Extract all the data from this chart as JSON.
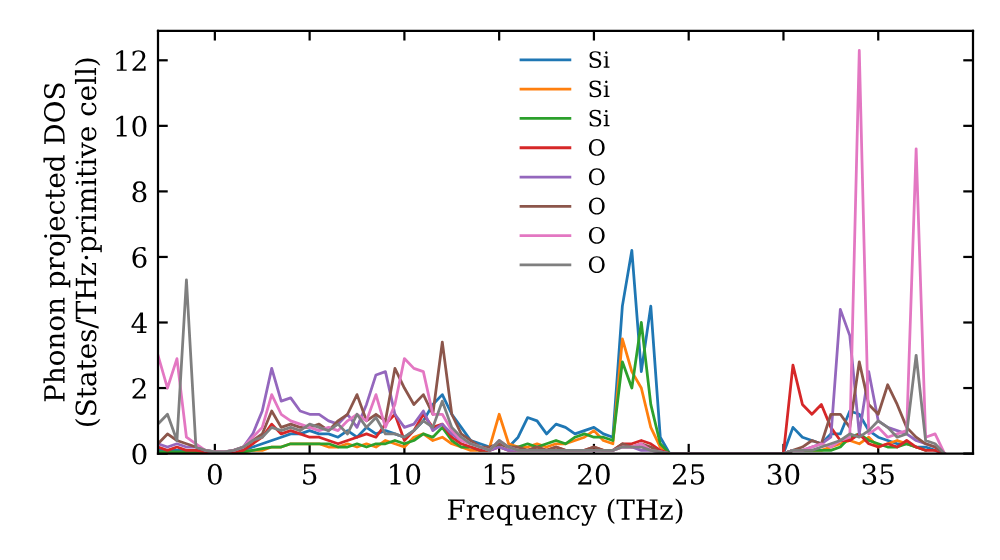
{
  "chart_data": {
    "type": "line",
    "xlabel": "Frequency (THz)",
    "ylabel": "Phonon projected DOS\n(States/THz·primitive cell)",
    "x": [
      -3,
      -2.5,
      -2,
      -1.5,
      -1,
      -0.5,
      0,
      0.5,
      1,
      1.5,
      2,
      2.5,
      3,
      3.5,
      4,
      4.5,
      5,
      5.5,
      6,
      6.5,
      7,
      7.5,
      8,
      8.5,
      9,
      9.5,
      10,
      10.5,
      11,
      11.5,
      12,
      12.5,
      13,
      13.5,
      14,
      14.5,
      15,
      15.5,
      16,
      16.5,
      17,
      17.5,
      18,
      18.5,
      19,
      19.5,
      20,
      20.5,
      21,
      21.5,
      22,
      22.5,
      23,
      23.5,
      24,
      24.5,
      25,
      28,
      30,
      30.5,
      31,
      31.5,
      32,
      32.5,
      33,
      33.5,
      34,
      34.5,
      35,
      35.5,
      36,
      36.5,
      37,
      37.5,
      38,
      38.5
    ],
    "series": [
      {
        "name": "Si",
        "color": "#1f77b4",
        "values": [
          0.1,
          0.1,
          0.1,
          0.1,
          0.1,
          0.05,
          0,
          0,
          0.05,
          0.1,
          0.2,
          0.3,
          0.4,
          0.5,
          0.6,
          0.6,
          0.7,
          0.6,
          0.6,
          0.5,
          0.7,
          0.5,
          0.8,
          0.6,
          0.7,
          0.6,
          0.5,
          0.7,
          1.0,
          1.5,
          1.8,
          1.2,
          0.8,
          0.4,
          0.3,
          0.2,
          0.3,
          0.2,
          0.5,
          1.1,
          1.0,
          0.6,
          0.9,
          0.8,
          0.6,
          0.7,
          0.8,
          0.6,
          0.5,
          4.5,
          6.2,
          2.5,
          4.5,
          0.5,
          0,
          0,
          0,
          0,
          0,
          0.8,
          0.5,
          0.4,
          0.3,
          0.6,
          0.6,
          1.3,
          1.2,
          0.7,
          0.5,
          0.4,
          0.3,
          0.3,
          0.2,
          0.2,
          0.1,
          0
        ]
      },
      {
        "name": "Si",
        "color": "#ff7f0e",
        "values": [
          null,
          null,
          null,
          null,
          null,
          null,
          null,
          null,
          null,
          0.05,
          0.1,
          0.1,
          0.2,
          0.2,
          0.3,
          0.3,
          0.3,
          0.3,
          0.2,
          0.2,
          0.3,
          0.2,
          0.3,
          0.2,
          0.4,
          0.3,
          0.2,
          0.5,
          0.6,
          0.4,
          0.5,
          0.3,
          0.2,
          0.1,
          0.1,
          0.2,
          1.2,
          0.3,
          0.2,
          0.2,
          0.3,
          0.2,
          0.3,
          0.3,
          0.4,
          0.5,
          0.7,
          0.4,
          0.3,
          3.5,
          2.5,
          2.0,
          0.8,
          0.2,
          0,
          0,
          0,
          0,
          0,
          0.1,
          0.1,
          0.1,
          0.1,
          0.2,
          0.3,
          0.4,
          0.3,
          0.5,
          0.2,
          0.3,
          0.4,
          0.3,
          0.2,
          null,
          null,
          null
        ]
      },
      {
        "name": "Si",
        "color": "#2ca02c",
        "values": [
          0.05,
          0.05,
          0.05,
          0.05,
          0.05,
          0.02,
          0,
          0,
          0,
          0.05,
          0.1,
          0.15,
          0.2,
          0.2,
          0.3,
          0.3,
          0.3,
          0.3,
          0.3,
          0.2,
          0.2,
          0.3,
          0.2,
          0.3,
          0.3,
          0.4,
          0.3,
          0.4,
          0.6,
          0.5,
          0.8,
          0.4,
          0.2,
          0.2,
          0.1,
          0.1,
          0.3,
          0.2,
          0.2,
          0.3,
          0.2,
          0.3,
          0.4,
          0.3,
          0.5,
          0.6,
          0.5,
          0.5,
          0.4,
          2.8,
          2.0,
          4.0,
          1.5,
          0.3,
          0,
          0,
          0,
          0,
          0,
          0.1,
          0.1,
          0.1,
          0.1,
          0.1,
          0.2,
          0.5,
          0.6,
          0.4,
          0.3,
          0.2,
          0.2,
          0.3,
          0.2,
          0.1,
          null,
          null
        ]
      },
      {
        "name": "O",
        "color": "#d62728",
        "values": [
          0.2,
          0.1,
          0.2,
          0.1,
          0.1,
          0.05,
          0,
          0,
          0.05,
          0.1,
          0.3,
          0.5,
          0.9,
          0.6,
          0.7,
          0.6,
          0.5,
          0.5,
          0.4,
          0.3,
          0.4,
          0.5,
          0.6,
          0.5,
          0.9,
          1.2,
          0.4,
          0.7,
          1.2,
          0.8,
          0.9,
          0.5,
          0.3,
          0.2,
          0.1,
          0.1,
          0.2,
          0.1,
          0.1,
          0.1,
          0.2,
          0.1,
          0.2,
          0.1,
          0.1,
          0.1,
          0.2,
          0.1,
          0.1,
          0.3,
          0.3,
          0.4,
          0.3,
          0.1,
          0,
          0,
          0,
          0,
          0,
          2.7,
          1.5,
          1.2,
          1.5,
          0.8,
          0.4,
          0.4,
          0.6,
          0.3,
          0.2,
          0.3,
          0.2,
          0.4,
          0.2,
          0.1,
          0.1,
          0
        ]
      },
      {
        "name": "O",
        "color": "#9467bd",
        "values": [
          0.3,
          0.2,
          0.3,
          0.2,
          0.2,
          0.1,
          0.05,
          0.05,
          0.1,
          0.2,
          0.6,
          1.3,
          2.6,
          1.6,
          1.7,
          1.3,
          1.2,
          1.2,
          1.0,
          0.9,
          1.2,
          0.8,
          1.5,
          2.4,
          2.5,
          1.2,
          0.8,
          0.9,
          1.3,
          0.7,
          0.9,
          0.6,
          0.4,
          0.3,
          0.2,
          0.1,
          0.2,
          0.1,
          0.1,
          0.1,
          0.1,
          0.1,
          0.1,
          0.1,
          0.1,
          0.1,
          0.1,
          0.1,
          0.1,
          0.2,
          0.2,
          0.1,
          0.1,
          0.05,
          0,
          0,
          0,
          0,
          0,
          0.1,
          0.1,
          0.2,
          0.3,
          0.5,
          4.4,
          3.6,
          0.6,
          2.5,
          1.0,
          0.8,
          0.7,
          0.6,
          0.4,
          0.3,
          0.2,
          0
        ]
      },
      {
        "name": "O",
        "color": "#8c564b",
        "values": [
          0.3,
          0.6,
          0.4,
          0.3,
          0.2,
          0.1,
          0.05,
          0.05,
          0.1,
          0.2,
          0.4,
          0.6,
          1.3,
          0.8,
          0.9,
          0.8,
          0.8,
          0.9,
          0.7,
          1.0,
          1.2,
          1.8,
          1.0,
          1.2,
          1.0,
          2.6,
          2.0,
          1.5,
          1.8,
          1.2,
          3.4,
          1.2,
          0.6,
          0.4,
          0.2,
          0.2,
          0.3,
          0.2,
          0.2,
          0.1,
          0.2,
          0.1,
          0.2,
          0.1,
          0.1,
          0.1,
          0.2,
          0.1,
          0.1,
          0.3,
          0.2,
          0.3,
          0.2,
          0.05,
          0,
          0,
          0,
          0,
          0,
          0.1,
          0.2,
          0.4,
          0.3,
          1.2,
          1.2,
          0.8,
          2.8,
          1.5,
          1.2,
          2.1,
          1.5,
          0.8,
          0.5,
          0.3,
          0.2,
          0
        ]
      },
      {
        "name": "O",
        "color": "#e377c2",
        "values": [
          3.0,
          2.0,
          2.9,
          0.5,
          0.3,
          0.1,
          0.05,
          0.05,
          0.1,
          0.2,
          0.5,
          0.8,
          1.8,
          1.2,
          1.0,
          0.9,
          0.8,
          0.7,
          0.8,
          0.7,
          1.0,
          1.2,
          1.0,
          1.8,
          0.8,
          1.5,
          2.9,
          2.6,
          2.5,
          1.2,
          1.2,
          0.7,
          0.4,
          0.3,
          0.2,
          0.1,
          0.4,
          0.2,
          0.1,
          0.1,
          0.1,
          0.1,
          0.1,
          0.1,
          0.1,
          0.1,
          0.1,
          0.1,
          0.1,
          0.2,
          0.2,
          0.3,
          0.1,
          0.05,
          0,
          0,
          0,
          0,
          0,
          0.1,
          0.1,
          0.2,
          0.3,
          0.2,
          0.4,
          0.5,
          12.3,
          0.6,
          0.8,
          0.5,
          0.6,
          0.7,
          9.3,
          0.5,
          0.6,
          0
        ]
      },
      {
        "name": "O",
        "color": "#7f7f7f",
        "values": [
          0.9,
          1.2,
          0.4,
          5.3,
          0.2,
          0.1,
          0.05,
          0.05,
          0.1,
          0.2,
          0.4,
          0.5,
          0.8,
          0.7,
          0.8,
          0.7,
          0.9,
          0.8,
          0.7,
          0.9,
          0.6,
          1.2,
          0.8,
          1.1,
          0.6,
          0.6,
          0.5,
          0.7,
          1.0,
          0.8,
          1.6,
          0.8,
          0.5,
          0.3,
          0.2,
          0.1,
          0.4,
          0.2,
          0.1,
          0.1,
          0.1,
          0.1,
          0.1,
          0.1,
          0.1,
          0.1,
          0.1,
          0.1,
          0.1,
          0.2,
          0.2,
          0.2,
          0.1,
          0.05,
          0,
          0,
          0,
          0,
          0,
          0.1,
          0.1,
          0.1,
          0.2,
          0.3,
          0.4,
          0.6,
          0.5,
          0.7,
          1.0,
          0.8,
          0.5,
          0.6,
          3.0,
          0.4,
          0.3,
          0
        ]
      }
    ],
    "xlim": [
      -3,
      40
    ],
    "ylim": [
      0,
      12.9
    ],
    "xticks": [
      0,
      5,
      10,
      15,
      20,
      25,
      30,
      35
    ],
    "yticks": [
      0,
      2,
      4,
      6,
      8,
      10,
      12
    ],
    "grid": false,
    "legend": "top",
    "marker": "none",
    "line_style": "solid"
  }
}
